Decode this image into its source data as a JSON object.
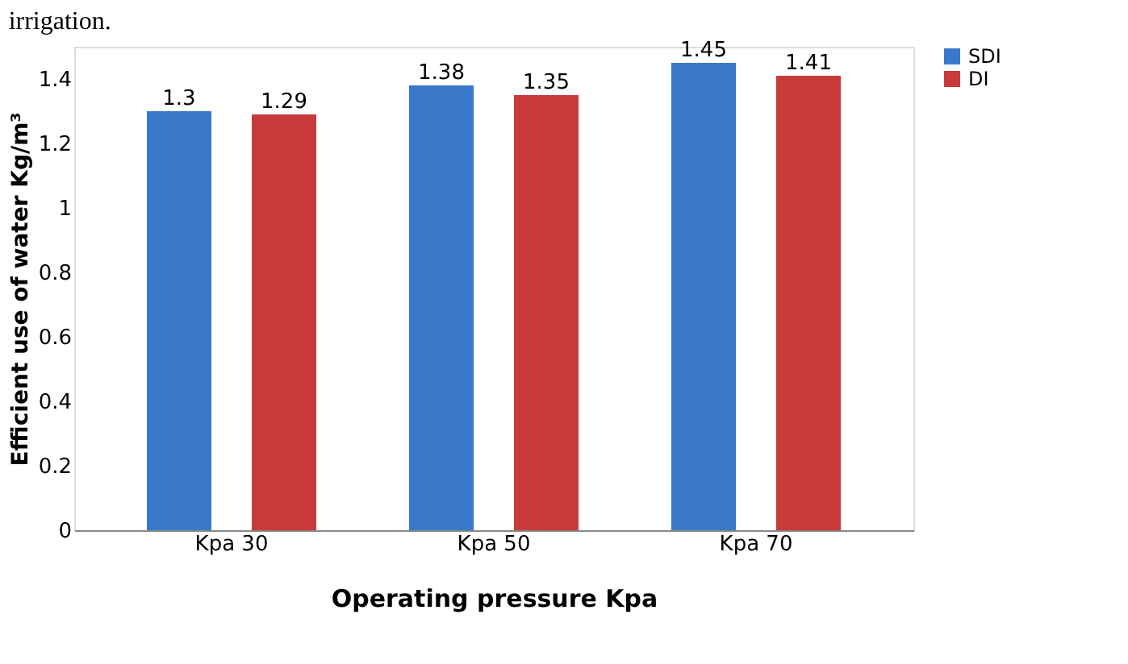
{
  "chart_data": {
    "type": "bar",
    "xlabel": "Operating pressure Kpa",
    "ylabel": "Efficient use of water Kg/m³",
    "categories": [
      "Kpa 30",
      "Kpa 50",
      "Kpa 70"
    ],
    "series": [
      {
        "name": "SDI",
        "color": "#3a78c9",
        "values": [
          1.3,
          1.38,
          1.45
        ]
      },
      {
        "name": "DI",
        "color": "#c93a3a",
        "values": [
          1.29,
          1.35,
          1.41
        ]
      }
    ],
    "ylim": [
      0,
      1.5
    ],
    "yticks": [
      0,
      0.2,
      0.4,
      0.6,
      0.8,
      1,
      1.2,
      1.4
    ],
    "grid": false,
    "legend": "right",
    "data_labels": true,
    "annotations": [
      "irrigation."
    ]
  }
}
